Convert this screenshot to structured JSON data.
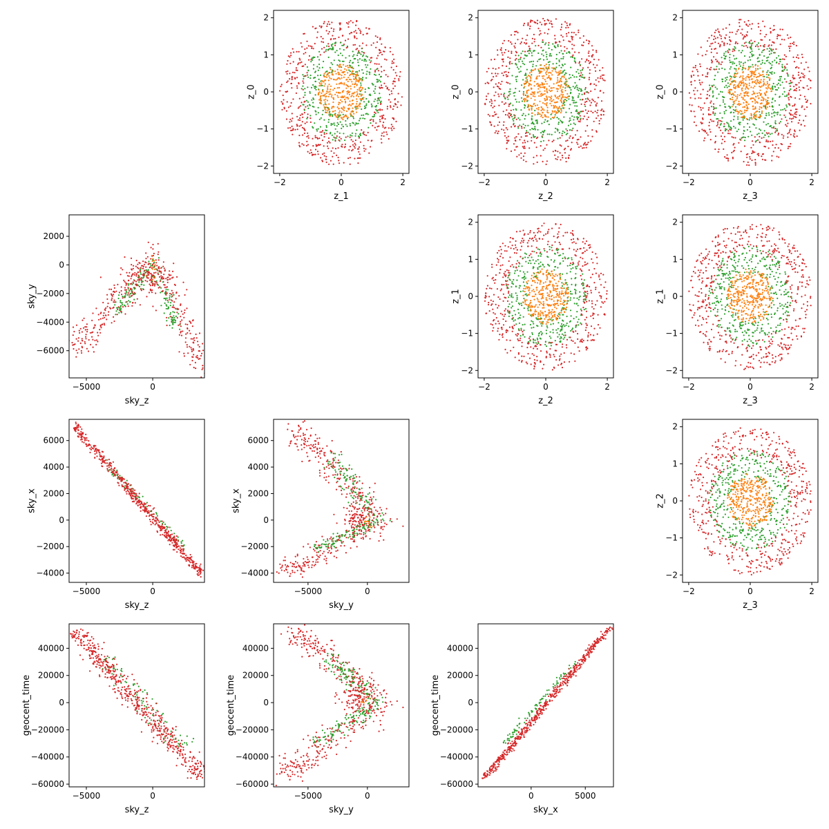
{
  "colors": {
    "red": "#d62728",
    "green": "#2ca02c",
    "orange": "#ff7f0e",
    "axis": "#000000"
  },
  "chart_data": [
    {
      "type": "scatter",
      "cell": [
        0,
        1
      ],
      "xlabel": "z_1",
      "ylabel": "z_0",
      "xlim": [
        -2.2,
        2.2
      ],
      "ylim": [
        -2.2,
        2.2
      ],
      "xticks": [
        -2,
        0,
        2
      ],
      "yticks": [
        -2,
        -1,
        0,
        1,
        2
      ],
      "series": [
        {
          "color": "red",
          "kind": "ring",
          "r": [
            1.2,
            2.0
          ],
          "n": 520
        },
        {
          "color": "green",
          "kind": "ring",
          "r": [
            0.6,
            1.35
          ],
          "n": 380
        },
        {
          "color": "orange",
          "kind": "disk",
          "r": 0.75,
          "n": 330
        }
      ]
    },
    {
      "type": "scatter",
      "cell": [
        0,
        2
      ],
      "xlabel": "z_2",
      "ylabel": "z_0",
      "xlim": [
        -2.2,
        2.2
      ],
      "ylim": [
        -2.2,
        2.2
      ],
      "xticks": [
        -2,
        0,
        2
      ],
      "yticks": [
        -2,
        -1,
        0,
        1,
        2
      ],
      "series": [
        {
          "color": "red",
          "kind": "ring",
          "r": [
            1.2,
            2.0
          ],
          "n": 520
        },
        {
          "color": "green",
          "kind": "ring",
          "r": [
            0.6,
            1.35
          ],
          "n": 380
        },
        {
          "color": "orange",
          "kind": "disk",
          "r": 0.75,
          "n": 330
        }
      ]
    },
    {
      "type": "scatter",
      "cell": [
        0,
        3
      ],
      "xlabel": "z_3",
      "ylabel": "z_0",
      "xlim": [
        -2.2,
        2.2
      ],
      "ylim": [
        -2.2,
        2.2
      ],
      "xticks": [
        -2,
        0,
        2
      ],
      "yticks": [
        -2,
        -1,
        0,
        1,
        2
      ],
      "series": [
        {
          "color": "red",
          "kind": "ring",
          "r": [
            1.2,
            2.0
          ],
          "n": 520
        },
        {
          "color": "green",
          "kind": "ring",
          "r": [
            0.6,
            1.35
          ],
          "n": 380
        },
        {
          "color": "orange",
          "kind": "disk",
          "r": 0.75,
          "n": 330
        }
      ]
    },
    {
      "type": "scatter",
      "cell": [
        1,
        0
      ],
      "xlabel": "sky_z",
      "ylabel": "sky_y",
      "xlim": [
        -6300,
        3900
      ],
      "ylim": [
        -7900,
        3500
      ],
      "xticks": [
        -5000,
        0
      ],
      "yticks": [
        -6000,
        -4000,
        -2000,
        0,
        2000
      ],
      "series": [
        {
          "color": "red",
          "kind": "vee",
          "apex": [
            0,
            800
          ],
          "left": [
            -5800,
            -6000
          ],
          "right": [
            3700,
            -7200
          ],
          "width": 600,
          "n": 360
        },
        {
          "color": "green",
          "kind": "vee",
          "apex": [
            0,
            200
          ],
          "left": [
            -2600,
            -3200
          ],
          "right": [
            1800,
            -4300
          ],
          "width": 500,
          "n": 180
        },
        {
          "color": "red",
          "kind": "blob",
          "c": [
            -300,
            -1000
          ],
          "s": [
            900,
            700
          ],
          "n": 160
        },
        {
          "color": "orange",
          "kind": "blob",
          "c": [
            0,
            -400
          ],
          "s": [
            200,
            400
          ],
          "n": 12
        }
      ]
    },
    {
      "type": "scatter",
      "cell": [
        1,
        2
      ],
      "xlabel": "z_2",
      "ylabel": "z_1",
      "xlim": [
        -2.2,
        2.2
      ],
      "ylim": [
        -2.2,
        2.2
      ],
      "xticks": [
        -2,
        0,
        2
      ],
      "yticks": [
        -2,
        -1,
        0,
        1,
        2
      ],
      "series": [
        {
          "color": "red",
          "kind": "ring",
          "r": [
            1.2,
            2.0
          ],
          "n": 520
        },
        {
          "color": "green",
          "kind": "ring",
          "r": [
            0.6,
            1.35
          ],
          "n": 380
        },
        {
          "color": "orange",
          "kind": "disk",
          "r": 0.75,
          "n": 330
        }
      ]
    },
    {
      "type": "scatter",
      "cell": [
        1,
        3
      ],
      "xlabel": "z_3",
      "ylabel": "z_1",
      "xlim": [
        -2.2,
        2.2
      ],
      "ylim": [
        -2.2,
        2.2
      ],
      "xticks": [
        -2,
        0,
        2
      ],
      "yticks": [
        -2,
        -1,
        0,
        1,
        2
      ],
      "series": [
        {
          "color": "red",
          "kind": "ring",
          "r": [
            1.2,
            2.0
          ],
          "n": 520
        },
        {
          "color": "green",
          "kind": "ring",
          "r": [
            0.6,
            1.35
          ],
          "n": 380
        },
        {
          "color": "orange",
          "kind": "disk",
          "r": 0.75,
          "n": 330
        }
      ]
    },
    {
      "type": "scatter",
      "cell": [
        2,
        0
      ],
      "xlabel": "sky_z",
      "ylabel": "sky_x",
      "xlim": [
        -6300,
        3900
      ],
      "ylim": [
        -4700,
        7600
      ],
      "xticks": [
        -5000,
        0
      ],
      "yticks": [
        -4000,
        -2000,
        0,
        2000,
        4000,
        6000
      ],
      "series": [
        {
          "color": "green",
          "kind": "line",
          "from": [
            -3500,
            4300
          ],
          "to": [
            2500,
            -2200
          ],
          "width": 300,
          "n": 80
        },
        {
          "color": "red",
          "kind": "line",
          "from": [
            -5900,
            7100
          ],
          "to": [
            3700,
            -4100
          ],
          "width": 320,
          "n": 560
        }
      ]
    },
    {
      "type": "scatter",
      "cell": [
        2,
        1
      ],
      "xlabel": "sky_y",
      "ylabel": "sky_x",
      "xlim": [
        -7900,
        3500
      ],
      "ylim": [
        -4700,
        7600
      ],
      "xticks": [
        -5000,
        0
      ],
      "yticks": [
        -4000,
        -2000,
        0,
        2000,
        4000,
        6000
      ],
      "series": [
        {
          "color": "red",
          "kind": "vee",
          "apex": [
            1500,
            0
          ],
          "left": [
            -6000,
            6800
          ],
          "right": [
            -7300,
            -4100
          ],
          "width": 700,
          "n": 420
        },
        {
          "color": "green",
          "kind": "vee",
          "apex": [
            1000,
            0
          ],
          "left": [
            -3000,
            4500
          ],
          "right": [
            -4200,
            -2200
          ],
          "width": 600,
          "n": 220
        },
        {
          "color": "red",
          "kind": "blob",
          "c": [
            -700,
            200
          ],
          "s": [
            700,
            600
          ],
          "n": 120
        },
        {
          "color": "orange",
          "kind": "blob",
          "c": [
            -200,
            100
          ],
          "s": [
            300,
            250
          ],
          "n": 10
        }
      ]
    },
    {
      "type": "scatter",
      "cell": [
        2,
        3
      ],
      "xlabel": "z_3",
      "ylabel": "z_2",
      "xlim": [
        -2.2,
        2.2
      ],
      "ylim": [
        -2.2,
        2.2
      ],
      "xticks": [
        -2,
        0,
        2
      ],
      "yticks": [
        -2,
        -1,
        0,
        1,
        2
      ],
      "series": [
        {
          "color": "red",
          "kind": "ring",
          "r": [
            1.2,
            2.0
          ],
          "n": 520
        },
        {
          "color": "green",
          "kind": "ring",
          "r": [
            0.6,
            1.35
          ],
          "n": 380
        },
        {
          "color": "orange",
          "kind": "disk",
          "r": 0.75,
          "n": 330
        }
      ]
    },
    {
      "type": "scatter",
      "cell": [
        3,
        0
      ],
      "xlabel": "sky_z",
      "ylabel": "geocent_time",
      "xlim": [
        -6300,
        3900
      ],
      "ylim": [
        -62000,
        58000
      ],
      "xticks": [
        -5000,
        0
      ],
      "yticks": [
        -60000,
        -40000,
        -20000,
        0,
        20000,
        40000
      ],
      "series": [
        {
          "color": "green",
          "kind": "line",
          "from": [
            -3800,
            33000
          ],
          "to": [
            2500,
            -33000
          ],
          "width": 2500,
          "n": 90
        },
        {
          "color": "red",
          "kind": "line",
          "from": [
            -5900,
            53000
          ],
          "to": [
            3700,
            -55000
          ],
          "width": 2600,
          "n": 560
        }
      ]
    },
    {
      "type": "scatter",
      "cell": [
        3,
        1
      ],
      "xlabel": "sky_y",
      "ylabel": "geocent_time",
      "xlim": [
        -7900,
        3500
      ],
      "ylim": [
        -62000,
        58000
      ],
      "xticks": [
        -5000,
        0
      ],
      "yticks": [
        -60000,
        -40000,
        -20000,
        0,
        20000,
        40000
      ],
      "series": [
        {
          "color": "red",
          "kind": "vee",
          "apex": [
            1500,
            0
          ],
          "left": [
            -6000,
            52000
          ],
          "right": [
            -7300,
            -55000
          ],
          "width": 700,
          "n": 420
        },
        {
          "color": "green",
          "kind": "vee",
          "apex": [
            1000,
            0
          ],
          "left": [
            -3300,
            32000
          ],
          "right": [
            -4300,
            -30000
          ],
          "width": 600,
          "n": 220
        },
        {
          "color": "red",
          "kind": "blob",
          "c": [
            -800,
            3000
          ],
          "s": [
            800,
            7000
          ],
          "n": 130
        },
        {
          "color": "orange",
          "kind": "blob",
          "c": [
            -300,
            2000
          ],
          "s": [
            300,
            3000
          ],
          "n": 8
        }
      ]
    },
    {
      "type": "scatter",
      "cell": [
        3,
        2
      ],
      "xlabel": "sky_x",
      "ylabel": "geocent_time",
      "xlim": [
        -4900,
        7600
      ],
      "ylim": [
        -62000,
        58000
      ],
      "xticks": [
        0,
        5000
      ],
      "yticks": [
        -60000,
        -40000,
        -20000,
        0,
        20000,
        40000
      ],
      "series": [
        {
          "color": "green",
          "kind": "line",
          "from": [
            -2500,
            -30000
          ],
          "to": [
            4000,
            30000
          ],
          "width": 2000,
          "n": 90
        },
        {
          "color": "red",
          "kind": "line",
          "from": [
            -4200,
            -55000
          ],
          "to": [
            7100,
            54000
          ],
          "width": 2200,
          "n": 560
        }
      ]
    }
  ]
}
